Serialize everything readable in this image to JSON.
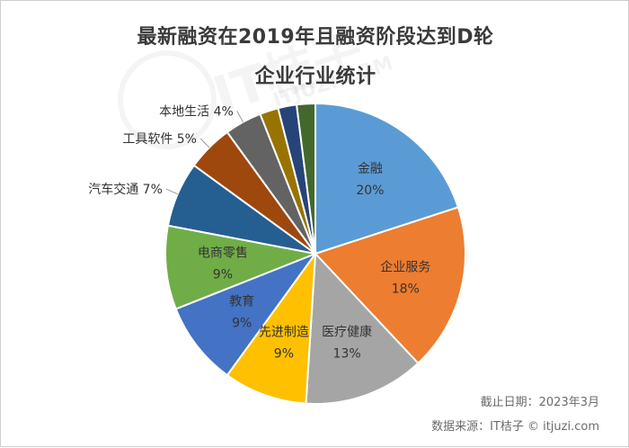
{
  "chart_data": {
    "type": "pie",
    "title": "最新融资在2019年且融资阶段达到D轮",
    "subtitle": "企业行业统计",
    "slices": [
      {
        "name": "金融",
        "value": 20,
        "label": "20%",
        "color": "#5b9bd5",
        "label_position": "inside"
      },
      {
        "name": "企业服务",
        "value": 18,
        "label": "18%",
        "color": "#ed7d31",
        "label_position": "inside"
      },
      {
        "name": "医疗健康",
        "value": 13,
        "label": "13%",
        "color": "#a5a5a5",
        "label_position": "inside"
      },
      {
        "name": "先进制造",
        "value": 9,
        "label": "9%",
        "color": "#ffc000",
        "label_position": "inside"
      },
      {
        "name": "教育",
        "value": 9,
        "label": "9%",
        "color": "#4472c4",
        "label_position": "inside"
      },
      {
        "name": "电商零售",
        "value": 9,
        "label": "9%",
        "color": "#70ad47",
        "label_position": "inside"
      },
      {
        "name": "汽车交通",
        "value": 7,
        "label": "7%",
        "color": "#255e91",
        "label_position": "outside"
      },
      {
        "name": "工具软件",
        "value": 5,
        "label": "5%",
        "color": "#9e480e",
        "label_position": "outside"
      },
      {
        "name": "本地生活",
        "value": 4,
        "label": "4%",
        "color": "#636363",
        "label_position": "outside"
      },
      {
        "name": "",
        "value": 2,
        "label": "",
        "color": "#997300",
        "label_position": "none"
      },
      {
        "name": "",
        "value": 2,
        "label": "",
        "color": "#264478",
        "label_position": "none"
      },
      {
        "name": "",
        "value": 2,
        "label": "",
        "color": "#43682b",
        "label_position": "none"
      }
    ]
  },
  "footer": {
    "date_line": "截止日期：2023年3月",
    "source_line": "数据来源：IT桔子 © itjuzi.com"
  },
  "watermark": {
    "text": "IT桔子",
    "url": "ITJUZI.COM"
  }
}
